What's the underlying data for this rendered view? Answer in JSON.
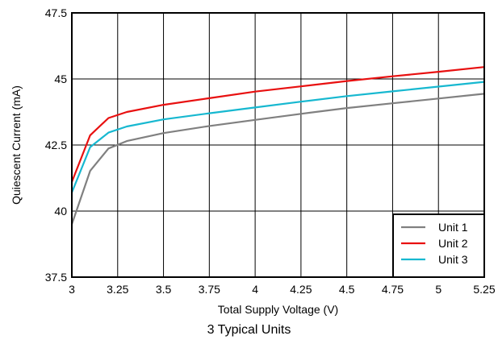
{
  "chart_data": {
    "type": "line",
    "title": "",
    "xlabel": "Total Supply Voltage (V)",
    "ylabel": "Quiescent Current (mA)",
    "xlim": [
      3,
      5.25
    ],
    "ylim": [
      37.5,
      47.5
    ],
    "xticks": [
      3,
      3.25,
      3.5,
      3.75,
      4,
      4.25,
      4.5,
      4.75,
      5,
      5.25
    ],
    "xtick_labels": [
      "3",
      "3.25",
      "3.5",
      "3.75",
      "4",
      "4.25",
      "4.5",
      "4.75",
      "5",
      "5.25"
    ],
    "yticks": [
      37.5,
      40,
      42.5,
      45,
      47.5
    ],
    "ytick_labels": [
      "37.5",
      "40",
      "42.5",
      "45",
      "47.5"
    ],
    "grid": true,
    "legend_position": "bottom-right",
    "series": [
      {
        "name": "Unit 1",
        "color": "#808080",
        "x": [
          3,
          3.1,
          3.2,
          3.3,
          3.5,
          3.75,
          4,
          4.25,
          4.5,
          4.75,
          5,
          5.25
        ],
        "y": [
          39.5,
          41.52,
          42.37,
          42.65,
          42.95,
          43.22,
          43.45,
          43.68,
          43.9,
          44.08,
          44.26,
          44.44
        ]
      },
      {
        "name": "Unit 2",
        "color": "#e81010",
        "x": [
          3,
          3.1,
          3.2,
          3.3,
          3.5,
          3.75,
          4,
          4.25,
          4.5,
          4.75,
          5,
          5.25
        ],
        "y": [
          41.1,
          42.87,
          43.52,
          43.75,
          44.02,
          44.27,
          44.52,
          44.72,
          44.92,
          45.1,
          45.27,
          45.45
        ]
      },
      {
        "name": "Unit 3",
        "color": "#17b8d0",
        "x": [
          3,
          3.1,
          3.2,
          3.3,
          3.5,
          3.75,
          4,
          4.25,
          4.5,
          4.75,
          5,
          5.25
        ],
        "y": [
          40.7,
          42.42,
          42.97,
          43.2,
          43.47,
          43.7,
          43.92,
          44.14,
          44.35,
          44.53,
          44.71,
          44.89
        ]
      }
    ]
  },
  "caption": "3 Typical Units"
}
